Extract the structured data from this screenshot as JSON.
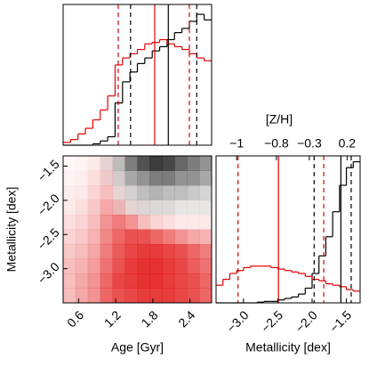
{
  "chart_data": [
    {
      "type": "histogram",
      "bins": [
        0.35,
        0.47,
        0.59,
        0.71,
        0.83,
        0.95,
        1.07,
        1.19,
        1.31,
        1.43,
        1.55,
        1.67,
        1.79,
        1.91,
        2.03,
        2.15,
        2.27,
        2.39,
        2.51,
        2.63,
        2.75
      ],
      "series": [
        {
          "color": "#000000",
          "values": [
            0,
            0,
            0,
            0,
            0.01,
            0.03,
            0.06,
            0.3,
            0.45,
            0.52,
            0.58,
            0.62,
            0.67,
            0.7,
            0.75,
            0.8,
            0.83,
            0.88,
            0.93,
            0.89
          ]
        },
        {
          "color": "#e00000",
          "values": [
            0.02,
            0.04,
            0.08,
            0.12,
            0.18,
            0.25,
            0.35,
            0.57,
            0.62,
            0.65,
            0.68,
            0.72,
            0.73,
            0.75,
            0.72,
            0.7,
            0.68,
            0.65,
            0.62,
            0.6
          ]
        }
      ],
      "vlines": [
        {
          "value": 1.24,
          "color": "#e00000",
          "style": "dashed"
        },
        {
          "value": 1.44,
          "color": "#000000",
          "style": "dashed"
        },
        {
          "value": 1.83,
          "color": "#e00000",
          "style": "solid"
        },
        {
          "value": 2.05,
          "color": "#000000",
          "style": "solid"
        },
        {
          "value": 2.39,
          "color": "#e00000",
          "style": "dashed"
        },
        {
          "value": 2.51,
          "color": "#000000",
          "style": "dashed"
        }
      ],
      "xlim": [
        0.35,
        2.75
      ],
      "ylim": [
        0,
        1
      ]
    },
    {
      "type": "heatmap",
      "xlabel": "Age [Gyr]",
      "ylabel": "Metallicity [dex]",
      "xlim": [
        0.35,
        2.75
      ],
      "ylim": [
        -3.5,
        -1.35
      ],
      "xticks": [
        0.6,
        1.2,
        1.8,
        2.4
      ],
      "yticks": [
        {
          "value": -1.5,
          "label": "−1.5"
        },
        {
          "value": -2.0,
          "label": "−2.0"
        },
        {
          "value": -2.5,
          "label": "−2.5"
        },
        {
          "value": -3.0,
          "label": "−3.0"
        }
      ],
      "layers": [
        {
          "color": "#e00000",
          "values": [
            [
              0.03,
              0.05,
              0.1,
              0.1,
              0.02,
              0,
              0,
              0,
              0,
              0,
              0,
              0
            ],
            [
              0.05,
              0.08,
              0.15,
              0.2,
              0.05,
              0,
              0,
              0,
              0,
              0,
              0,
              0
            ],
            [
              0.08,
              0.1,
              0.2,
              0.3,
              0.1,
              0.02,
              0,
              0,
              0,
              0,
              0,
              0
            ],
            [
              0.1,
              0.15,
              0.25,
              0.4,
              0.3,
              0.1,
              0.05,
              0.03,
              0.02,
              0.02,
              0.02,
              0.02
            ],
            [
              0.15,
              0.2,
              0.3,
              0.5,
              0.6,
              0.5,
              0.3,
              0.2,
              0.15,
              0.1,
              0.1,
              0.1
            ],
            [
              0.2,
              0.25,
              0.35,
              0.55,
              0.7,
              0.8,
              0.8,
              0.7,
              0.6,
              0.5,
              0.4,
              0.35
            ],
            [
              0.25,
              0.3,
              0.4,
              0.6,
              0.75,
              0.85,
              0.9,
              0.9,
              0.85,
              0.8,
              0.7,
              0.6
            ],
            [
              0.3,
              0.35,
              0.45,
              0.65,
              0.8,
              0.9,
              0.95,
              0.95,
              0.9,
              0.85,
              0.75,
              0.65
            ],
            [
              0.3,
              0.4,
              0.5,
              0.7,
              0.85,
              0.9,
              0.95,
              0.95,
              0.9,
              0.85,
              0.8,
              0.7
            ],
            [
              0.3,
              0.4,
              0.5,
              0.7,
              0.8,
              0.85,
              0.9,
              0.9,
              0.9,
              0.85,
              0.8,
              0.7
            ]
          ]
        },
        {
          "color": "#000000",
          "values": [
            [
              0,
              0,
              0,
              0.1,
              0.3,
              0.6,
              0.8,
              0.9,
              0.85,
              0.7,
              0.6,
              0.5
            ],
            [
              0,
              0,
              0,
              0.05,
              0.2,
              0.4,
              0.5,
              0.6,
              0.6,
              0.5,
              0.5,
              0.4
            ],
            [
              0,
              0,
              0,
              0,
              0.1,
              0.2,
              0.3,
              0.35,
              0.3,
              0.3,
              0.25,
              0.2
            ],
            [
              0,
              0,
              0,
              0,
              0.05,
              0.1,
              0.15,
              0.15,
              0.15,
              0.1,
              0.1,
              0.1
            ],
            [
              0,
              0,
              0,
              0,
              0,
              0,
              0,
              0,
              0,
              0,
              0,
              0
            ],
            [
              0,
              0,
              0,
              0,
              0,
              0,
              0,
              0,
              0,
              0,
              0,
              0
            ],
            [
              0,
              0,
              0,
              0,
              0,
              0,
              0,
              0,
              0,
              0,
              0,
              0
            ],
            [
              0,
              0,
              0,
              0,
              0,
              0,
              0,
              0,
              0,
              0,
              0,
              0
            ],
            [
              0,
              0,
              0,
              0,
              0,
              0,
              0,
              0,
              0,
              0,
              0,
              0
            ],
            [
              0,
              0,
              0,
              0,
              0,
              0,
              0,
              0,
              0,
              0,
              0,
              0
            ]
          ]
        }
      ]
    },
    {
      "type": "histogram",
      "xlabel": "Metallicity [dex]",
      "x2label": "[Z/H]",
      "bins": [
        -3.4,
        -3.3,
        -3.2,
        -3.1,
        -3.0,
        -2.9,
        -2.8,
        -2.7,
        -2.6,
        -2.5,
        -2.4,
        -2.3,
        -2.2,
        -2.1,
        -2.0,
        -1.9,
        -1.8,
        -1.7,
        -1.6,
        -1.5,
        -1.4,
        -1.3
      ],
      "series": [
        {
          "color": "#000000",
          "values": [
            0,
            0,
            0,
            0,
            0,
            0,
            0.005,
            0.01,
            0.01,
            0.02,
            0.03,
            0.04,
            0.06,
            0.1,
            0.2,
            0.32,
            0.45,
            0.62,
            0.8,
            0.92,
            0.96
          ]
        },
        {
          "color": "#e00000",
          "values": [
            0.12,
            0.16,
            0.2,
            0.22,
            0.24,
            0.25,
            0.25,
            0.25,
            0.24,
            0.23,
            0.22,
            0.21,
            0.2,
            0.18,
            0.16,
            0.15,
            0.13,
            0.12,
            0.11,
            0.09,
            0.08
          ]
        }
      ],
      "vlines": [
        {
          "value": -3.08,
          "color": "#e00000",
          "style": "dashed"
        },
        {
          "value": -2.49,
          "color": "#e00000",
          "style": "solid"
        },
        {
          "value": -1.97,
          "color": "#000000",
          "style": "dashed"
        },
        {
          "value": -1.83,
          "color": "#e00000",
          "style": "dashed"
        },
        {
          "value": -1.58,
          "color": "#000000",
          "style": "solid"
        },
        {
          "value": -1.43,
          "color": "#000000",
          "style": "dashed"
        }
      ],
      "xlim": [
        -3.4,
        -1.3
      ],
      "ylim": [
        0,
        1
      ],
      "xticks": [
        {
          "value": -3.0,
          "label": "−3.0"
        },
        {
          "value": -2.5,
          "label": "−2.5"
        },
        {
          "value": -2.0,
          "label": "−2.0"
        },
        {
          "value": -1.5,
          "label": "−1.5"
        }
      ],
      "x2ticks": [
        {
          "value": -1,
          "label": "−1"
        },
        {
          "value": -0.8,
          "label": "−0.8"
        },
        {
          "value": -0.3,
          "label": "−0.3"
        },
        0.2
      ],
      "x2tick_metallicity": [
        -3.1,
        -2.52,
        -2.04,
        -1.49
      ]
    }
  ]
}
